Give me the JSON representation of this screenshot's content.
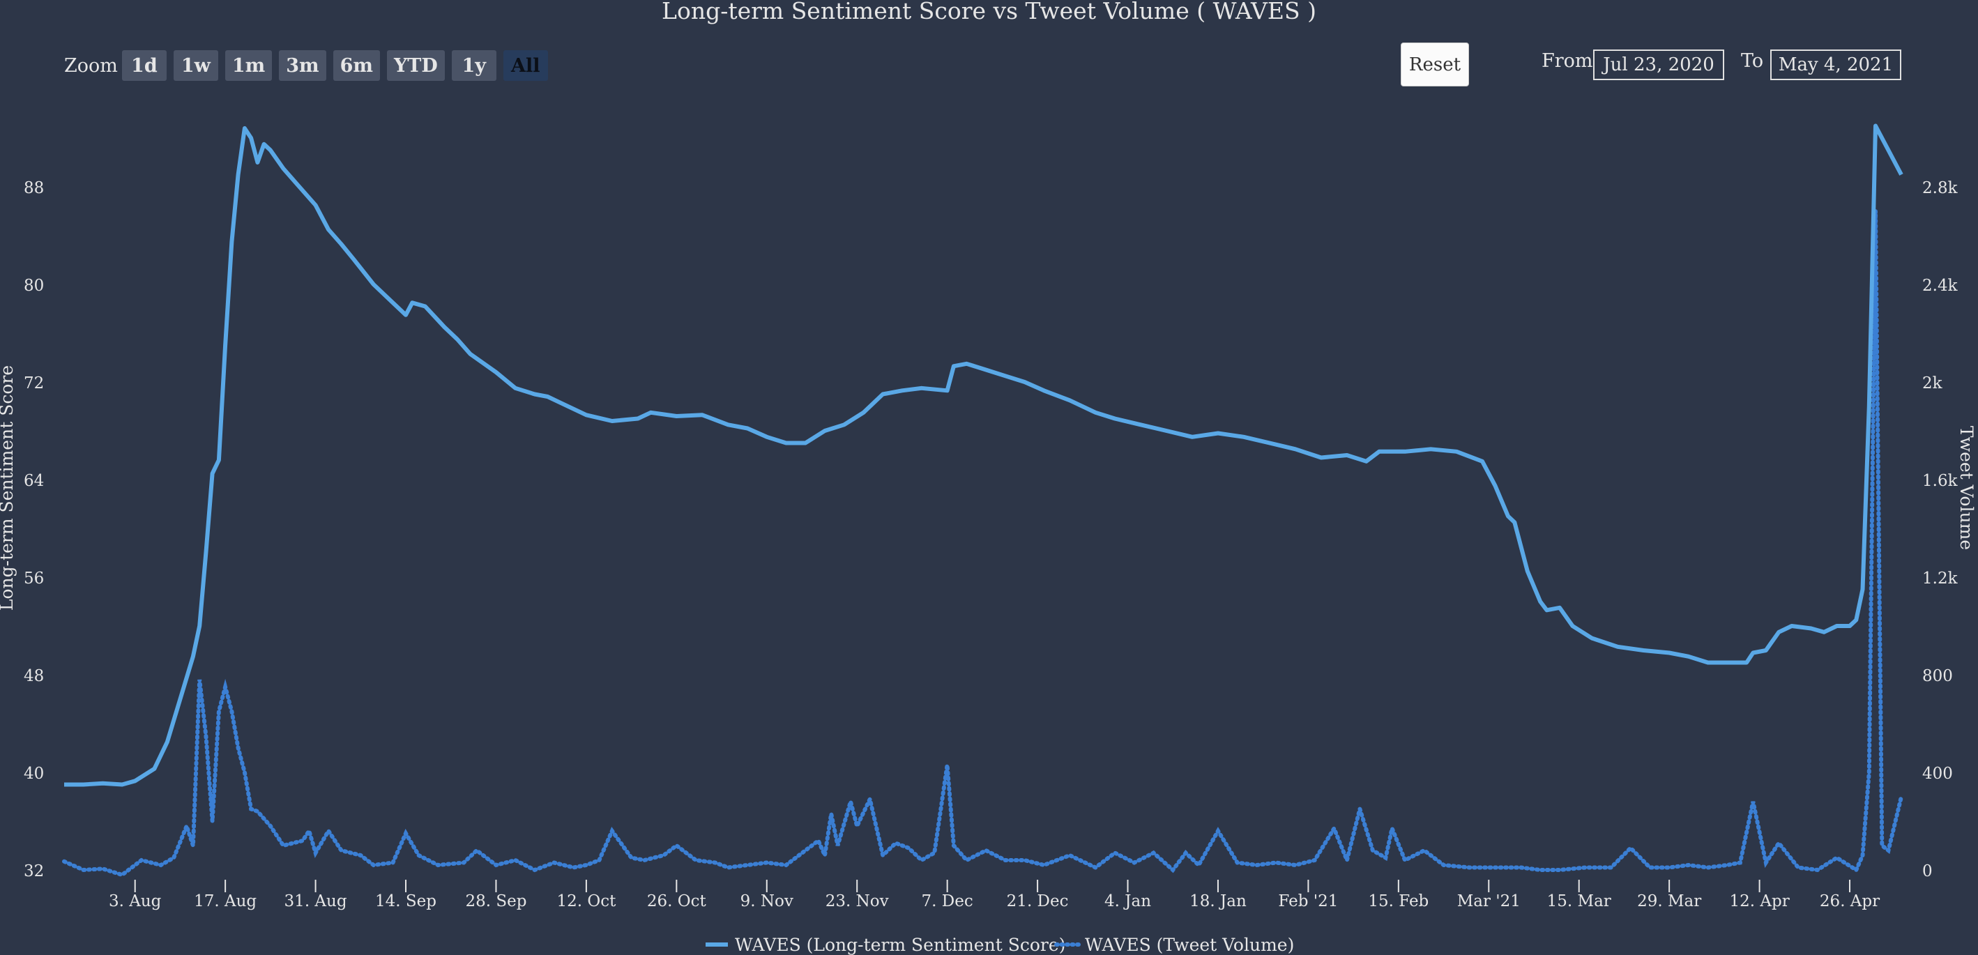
{
  "title": "Long-term Sentiment Score vs Tweet Volume ( WAVES )",
  "zoom": {
    "label": "Zoom",
    "buttons": [
      "1d",
      "1w",
      "1m",
      "3m",
      "6m",
      "YTD",
      "1y",
      "All"
    ],
    "active": "All"
  },
  "reset_label": "Reset",
  "range": {
    "from_label": "From",
    "from_value": "Jul 23, 2020",
    "to_label": "To",
    "to_value": "May 4, 2021"
  },
  "colors": {
    "background": "#2d3648",
    "sentiment": "#5aa8e6",
    "volume": "#3b7fd4",
    "text": "#e6e6e6"
  },
  "chart_data": {
    "type": "line",
    "xlim": [
      "2020-07-23",
      "2021-05-04"
    ],
    "x_ticks": [
      {
        "date": "2020-08-03",
        "label": "3. Aug"
      },
      {
        "date": "2020-08-17",
        "label": "17. Aug"
      },
      {
        "date": "2020-08-31",
        "label": "31. Aug"
      },
      {
        "date": "2020-09-14",
        "label": "14. Sep"
      },
      {
        "date": "2020-09-28",
        "label": "28. Sep"
      },
      {
        "date": "2020-10-12",
        "label": "12. Oct"
      },
      {
        "date": "2020-10-26",
        "label": "26. Oct"
      },
      {
        "date": "2020-11-09",
        "label": "9. Nov"
      },
      {
        "date": "2020-11-23",
        "label": "23. Nov"
      },
      {
        "date": "2020-12-07",
        "label": "7. Dec"
      },
      {
        "date": "2020-12-21",
        "label": "21. Dec"
      },
      {
        "date": "2021-01-04",
        "label": "4. Jan"
      },
      {
        "date": "2021-01-18",
        "label": "18. Jan"
      },
      {
        "date": "2021-02-01",
        "label": "Feb '21"
      },
      {
        "date": "2021-02-15",
        "label": "15. Feb"
      },
      {
        "date": "2021-03-01",
        "label": "Mar '21"
      },
      {
        "date": "2021-03-15",
        "label": "15. Mar"
      },
      {
        "date": "2021-03-29",
        "label": "29. Mar"
      },
      {
        "date": "2021-04-12",
        "label": "12. Apr"
      },
      {
        "date": "2021-04-26",
        "label": "26. Apr"
      }
    ],
    "y_left": {
      "label": "Long-term Sentiment Score",
      "min": 32,
      "max": 88,
      "ticks": [
        "32",
        "40",
        "48",
        "56",
        "64",
        "72",
        "80",
        "88"
      ]
    },
    "y_right": {
      "label": "Tweet Volume",
      "min": 0,
      "max": 2800,
      "ticks": [
        "0",
        "400",
        "800",
        "1.2k",
        "1.6k",
        "2k",
        "2.4k",
        "2.8k"
      ]
    },
    "legend_position": "bottom-center",
    "series": [
      {
        "name": "WAVES (Long-term Sentiment Score)",
        "style": "solid",
        "axis": "left",
        "points": [
          [
            "2020-07-23",
            39.0
          ],
          [
            "2020-07-26",
            39.0
          ],
          [
            "2020-07-29",
            39.1
          ],
          [
            "2020-08-01",
            39.0
          ],
          [
            "2020-08-03",
            39.3
          ],
          [
            "2020-08-06",
            40.3
          ],
          [
            "2020-08-08",
            42.5
          ],
          [
            "2020-08-10",
            46.0
          ],
          [
            "2020-08-12",
            49.5
          ],
          [
            "2020-08-13",
            52.0
          ],
          [
            "2020-08-14",
            58.0
          ],
          [
            "2020-08-15",
            64.5
          ],
          [
            "2020-08-16",
            65.6
          ],
          [
            "2020-08-17",
            75.0
          ],
          [
            "2020-08-18",
            83.5
          ],
          [
            "2020-08-19",
            89.0
          ],
          [
            "2020-08-20",
            92.8
          ],
          [
            "2020-08-21",
            92.0
          ],
          [
            "2020-08-22",
            90.0
          ],
          [
            "2020-08-23",
            91.5
          ],
          [
            "2020-08-24",
            91.0
          ],
          [
            "2020-08-26",
            89.5
          ],
          [
            "2020-08-28",
            88.3
          ],
          [
            "2020-08-31",
            86.5
          ],
          [
            "2020-09-02",
            84.5
          ],
          [
            "2020-09-04",
            83.3
          ],
          [
            "2020-09-06",
            82.0
          ],
          [
            "2020-09-09",
            80.0
          ],
          [
            "2020-09-12",
            78.5
          ],
          [
            "2020-09-14",
            77.5
          ],
          [
            "2020-09-15",
            78.5
          ],
          [
            "2020-09-17",
            78.2
          ],
          [
            "2020-09-20",
            76.5
          ],
          [
            "2020-09-22",
            75.5
          ],
          [
            "2020-09-24",
            74.3
          ],
          [
            "2020-09-28",
            72.8
          ],
          [
            "2020-10-01",
            71.5
          ],
          [
            "2020-10-04",
            71.0
          ],
          [
            "2020-10-06",
            70.8
          ],
          [
            "2020-10-08",
            70.3
          ],
          [
            "2020-10-12",
            69.3
          ],
          [
            "2020-10-16",
            68.8
          ],
          [
            "2020-10-20",
            69.0
          ],
          [
            "2020-10-22",
            69.5
          ],
          [
            "2020-10-26",
            69.2
          ],
          [
            "2020-10-30",
            69.3
          ],
          [
            "2020-11-03",
            68.5
          ],
          [
            "2020-11-06",
            68.2
          ],
          [
            "2020-11-09",
            67.5
          ],
          [
            "2020-11-12",
            67.0
          ],
          [
            "2020-11-15",
            67.0
          ],
          [
            "2020-11-18",
            68.0
          ],
          [
            "2020-11-21",
            68.5
          ],
          [
            "2020-11-24",
            69.5
          ],
          [
            "2020-11-27",
            71.0
          ],
          [
            "2020-11-30",
            71.3
          ],
          [
            "2020-12-03",
            71.5
          ],
          [
            "2020-12-07",
            71.3
          ],
          [
            "2020-12-08",
            73.3
          ],
          [
            "2020-12-10",
            73.5
          ],
          [
            "2020-12-13",
            73.0
          ],
          [
            "2020-12-16",
            72.5
          ],
          [
            "2020-12-19",
            72.0
          ],
          [
            "2020-12-22",
            71.3
          ],
          [
            "2020-12-26",
            70.5
          ],
          [
            "2020-12-30",
            69.5
          ],
          [
            "2021-01-02",
            69.0
          ],
          [
            "2021-01-06",
            68.5
          ],
          [
            "2021-01-10",
            68.0
          ],
          [
            "2021-01-14",
            67.5
          ],
          [
            "2021-01-18",
            67.8
          ],
          [
            "2021-01-22",
            67.5
          ],
          [
            "2021-01-26",
            67.0
          ],
          [
            "2021-01-30",
            66.5
          ],
          [
            "2021-02-03",
            65.8
          ],
          [
            "2021-02-07",
            66.0
          ],
          [
            "2021-02-10",
            65.5
          ],
          [
            "2021-02-12",
            66.3
          ],
          [
            "2021-02-16",
            66.3
          ],
          [
            "2021-02-20",
            66.5
          ],
          [
            "2021-02-24",
            66.3
          ],
          [
            "2021-02-28",
            65.5
          ],
          [
            "2021-03-02",
            63.5
          ],
          [
            "2021-03-04",
            61.0
          ],
          [
            "2021-03-05",
            60.5
          ],
          [
            "2021-03-07",
            56.5
          ],
          [
            "2021-03-09",
            54.0
          ],
          [
            "2021-03-10",
            53.3
          ],
          [
            "2021-03-12",
            53.5
          ],
          [
            "2021-03-14",
            52.0
          ],
          [
            "2021-03-17",
            51.0
          ],
          [
            "2021-03-21",
            50.3
          ],
          [
            "2021-03-25",
            50.0
          ],
          [
            "2021-03-29",
            49.8
          ],
          [
            "2021-04-01",
            49.5
          ],
          [
            "2021-04-04",
            49.0
          ],
          [
            "2021-04-08",
            49.0
          ],
          [
            "2021-04-10",
            49.0
          ],
          [
            "2021-04-11",
            49.8
          ],
          [
            "2021-04-13",
            50.0
          ],
          [
            "2021-04-15",
            51.5
          ],
          [
            "2021-04-17",
            52.0
          ],
          [
            "2021-04-20",
            51.8
          ],
          [
            "2021-04-22",
            51.5
          ],
          [
            "2021-04-24",
            52.0
          ],
          [
            "2021-04-26",
            52.0
          ],
          [
            "2021-04-27",
            52.5
          ],
          [
            "2021-04-28",
            55.0
          ],
          [
            "2021-04-29",
            70.0
          ],
          [
            "2021-04-30",
            93.0
          ],
          [
            "2021-05-02",
            91.0
          ],
          [
            "2021-05-04",
            89.0
          ]
        ]
      },
      {
        "name": "WAVES (Tweet Volume)",
        "style": "dotted",
        "axis": "right",
        "points": [
          [
            "2020-07-23",
            35
          ],
          [
            "2020-07-26",
            0
          ],
          [
            "2020-07-29",
            5
          ],
          [
            "2020-08-01",
            -20
          ],
          [
            "2020-08-04",
            40
          ],
          [
            "2020-08-07",
            20
          ],
          [
            "2020-08-09",
            50
          ],
          [
            "2020-08-11",
            180
          ],
          [
            "2020-08-12",
            100
          ],
          [
            "2020-08-13",
            780
          ],
          [
            "2020-08-14",
            550
          ],
          [
            "2020-08-15",
            200
          ],
          [
            "2020-08-16",
            650
          ],
          [
            "2020-08-17",
            750
          ],
          [
            "2020-08-18",
            650
          ],
          [
            "2020-08-19",
            500
          ],
          [
            "2020-08-20",
            400
          ],
          [
            "2020-08-21",
            250
          ],
          [
            "2020-08-22",
            240
          ],
          [
            "2020-08-24",
            180
          ],
          [
            "2020-08-26",
            100
          ],
          [
            "2020-08-29",
            120
          ],
          [
            "2020-08-30",
            160
          ],
          [
            "2020-08-31",
            70
          ],
          [
            "2020-09-02",
            160
          ],
          [
            "2020-09-04",
            80
          ],
          [
            "2020-09-07",
            60
          ],
          [
            "2020-09-09",
            20
          ],
          [
            "2020-09-12",
            30
          ],
          [
            "2020-09-14",
            150
          ],
          [
            "2020-09-16",
            60
          ],
          [
            "2020-09-19",
            20
          ],
          [
            "2020-09-23",
            30
          ],
          [
            "2020-09-25",
            80
          ],
          [
            "2020-09-28",
            20
          ],
          [
            "2020-10-01",
            40
          ],
          [
            "2020-10-04",
            0
          ],
          [
            "2020-10-07",
            30
          ],
          [
            "2020-10-10",
            10
          ],
          [
            "2020-10-12",
            20
          ],
          [
            "2020-10-14",
            40
          ],
          [
            "2020-10-16",
            160
          ],
          [
            "2020-10-19",
            50
          ],
          [
            "2020-10-21",
            40
          ],
          [
            "2020-10-24",
            60
          ],
          [
            "2020-10-26",
            100
          ],
          [
            "2020-10-29",
            40
          ],
          [
            "2020-11-01",
            30
          ],
          [
            "2020-11-03",
            10
          ],
          [
            "2020-11-06",
            20
          ],
          [
            "2020-11-09",
            30
          ],
          [
            "2020-11-12",
            20
          ],
          [
            "2020-11-15",
            80
          ],
          [
            "2020-11-17",
            120
          ],
          [
            "2020-11-18",
            60
          ],
          [
            "2020-11-19",
            230
          ],
          [
            "2020-11-20",
            100
          ],
          [
            "2020-11-22",
            280
          ],
          [
            "2020-11-23",
            180
          ],
          [
            "2020-11-25",
            290
          ],
          [
            "2020-11-27",
            60
          ],
          [
            "2020-11-29",
            110
          ],
          [
            "2020-12-01",
            90
          ],
          [
            "2020-12-03",
            40
          ],
          [
            "2020-12-05",
            70
          ],
          [
            "2020-12-07",
            430
          ],
          [
            "2020-12-08",
            100
          ],
          [
            "2020-12-10",
            40
          ],
          [
            "2020-12-13",
            80
          ],
          [
            "2020-12-16",
            40
          ],
          [
            "2020-12-19",
            40
          ],
          [
            "2020-12-22",
            20
          ],
          [
            "2020-12-26",
            60
          ],
          [
            "2020-12-30",
            10
          ],
          [
            "2021-01-02",
            70
          ],
          [
            "2021-01-05",
            30
          ],
          [
            "2021-01-08",
            70
          ],
          [
            "2021-01-11",
            0
          ],
          [
            "2021-01-13",
            70
          ],
          [
            "2021-01-15",
            20
          ],
          [
            "2021-01-18",
            160
          ],
          [
            "2021-01-21",
            30
          ],
          [
            "2021-01-24",
            20
          ],
          [
            "2021-01-27",
            30
          ],
          [
            "2021-01-30",
            20
          ],
          [
            "2021-02-02",
            40
          ],
          [
            "2021-02-05",
            170
          ],
          [
            "2021-02-07",
            40
          ],
          [
            "2021-02-09",
            250
          ],
          [
            "2021-02-11",
            80
          ],
          [
            "2021-02-13",
            50
          ],
          [
            "2021-02-14",
            170
          ],
          [
            "2021-02-16",
            40
          ],
          [
            "2021-02-19",
            80
          ],
          [
            "2021-02-22",
            20
          ],
          [
            "2021-02-26",
            10
          ],
          [
            "2021-03-02",
            10
          ],
          [
            "2021-03-06",
            10
          ],
          [
            "2021-03-09",
            0
          ],
          [
            "2021-03-12",
            0
          ],
          [
            "2021-03-16",
            10
          ],
          [
            "2021-03-20",
            10
          ],
          [
            "2021-03-23",
            90
          ],
          [
            "2021-03-26",
            10
          ],
          [
            "2021-03-29",
            10
          ],
          [
            "2021-04-01",
            20
          ],
          [
            "2021-04-04",
            10
          ],
          [
            "2021-04-07",
            20
          ],
          [
            "2021-04-09",
            30
          ],
          [
            "2021-04-11",
            280
          ],
          [
            "2021-04-13",
            30
          ],
          [
            "2021-04-15",
            110
          ],
          [
            "2021-04-18",
            10
          ],
          [
            "2021-04-21",
            0
          ],
          [
            "2021-04-24",
            50
          ],
          [
            "2021-04-27",
            0
          ],
          [
            "2021-04-28",
            60
          ],
          [
            "2021-04-29",
            400
          ],
          [
            "2021-04-30",
            2700
          ],
          [
            "2021-05-01",
            100
          ],
          [
            "2021-05-02",
            80
          ],
          [
            "2021-05-04",
            300
          ]
        ]
      }
    ]
  }
}
